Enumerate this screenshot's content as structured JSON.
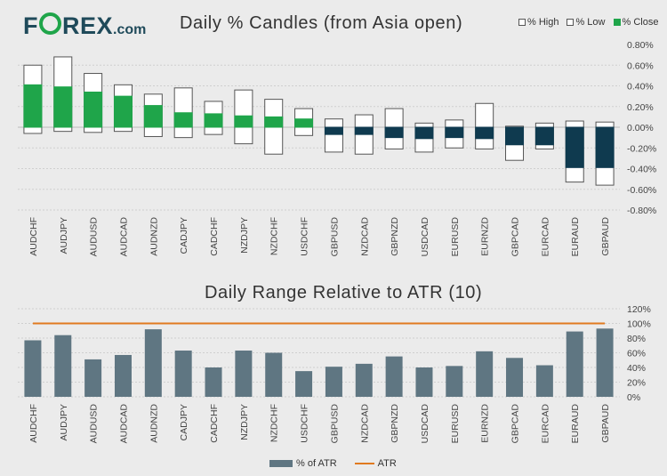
{
  "brand": {
    "name_start": "F",
    "name_o": "O",
    "name_end": "REX",
    "domain": ".com"
  },
  "colors": {
    "bull": "#1fa54a",
    "bear": "#0f3a4f",
    "wick": "#ffffff",
    "bar": "#5f7682",
    "atr_line": "#e07a1f",
    "grid": "#cfcfcf"
  },
  "chart_data": [
    {
      "type": "candlestick",
      "title": "Daily % Candles (from Asia open)",
      "legend": [
        "% High",
        "% Low",
        "% Close"
      ],
      "ylim": [
        -0.8,
        0.8
      ],
      "yticks": [
        "0.80%",
        "0.60%",
        "0.40%",
        "0.20%",
        "0.00%",
        "-0.20%",
        "-0.40%",
        "-0.60%",
        "-0.80%"
      ],
      "categories": [
        "AUDCHF",
        "AUDJPY",
        "AUDUSD",
        "AUDCAD",
        "AUDNZD",
        "CADJPY",
        "CADCHF",
        "NZDJPY",
        "NZDCHF",
        "USDCHF",
        "GBPUSD",
        "NZDCAD",
        "GBPNZD",
        "USDCAD",
        "EURUSD",
        "EURNZD",
        "GBPCAD",
        "EURCAD",
        "EURAUD",
        "GBPAUD"
      ],
      "high": [
        0.6,
        0.68,
        0.52,
        0.41,
        0.32,
        0.38,
        0.25,
        0.36,
        0.27,
        0.18,
        0.08,
        0.12,
        0.18,
        0.04,
        0.07,
        0.23,
        0.01,
        0.04,
        0.06,
        0.05
      ],
      "low": [
        -0.06,
        -0.04,
        -0.05,
        -0.04,
        -0.09,
        -0.1,
        -0.07,
        -0.16,
        -0.26,
        -0.08,
        -0.24,
        -0.26,
        -0.21,
        -0.24,
        -0.2,
        -0.21,
        -0.32,
        -0.21,
        -0.53,
        -0.56
      ],
      "close": [
        0.41,
        0.39,
        0.34,
        0.3,
        0.21,
        0.14,
        0.13,
        0.11,
        0.1,
        0.08,
        -0.07,
        -0.07,
        -0.1,
        -0.11,
        -0.1,
        -0.11,
        -0.17,
        -0.17,
        -0.39,
        -0.39
      ]
    },
    {
      "type": "bar",
      "title": "Daily Range Relative to ATR (10)",
      "legend": [
        "% of ATR",
        "ATR"
      ],
      "ylim": [
        0,
        120
      ],
      "yticks": [
        "120%",
        "100%",
        "80%",
        "60%",
        "40%",
        "20%",
        "0%"
      ],
      "categories": [
        "AUDCHF",
        "AUDJPY",
        "AUDUSD",
        "AUDCAD",
        "AUDNZD",
        "CADJPY",
        "CADCHF",
        "NZDJPY",
        "NZDCHF",
        "USDCHF",
        "GBPUSD",
        "NZDCAD",
        "GBPNZD",
        "USDCAD",
        "EURUSD",
        "EURNZD",
        "GBPCAD",
        "EURCAD",
        "EURAUD",
        "GBPAUD"
      ],
      "values": [
        77,
        84,
        51,
        57,
        92,
        63,
        40,
        63,
        60,
        35,
        41,
        45,
        55,
        40,
        42,
        62,
        53,
        43,
        89,
        93
      ],
      "atr": 100
    }
  ]
}
